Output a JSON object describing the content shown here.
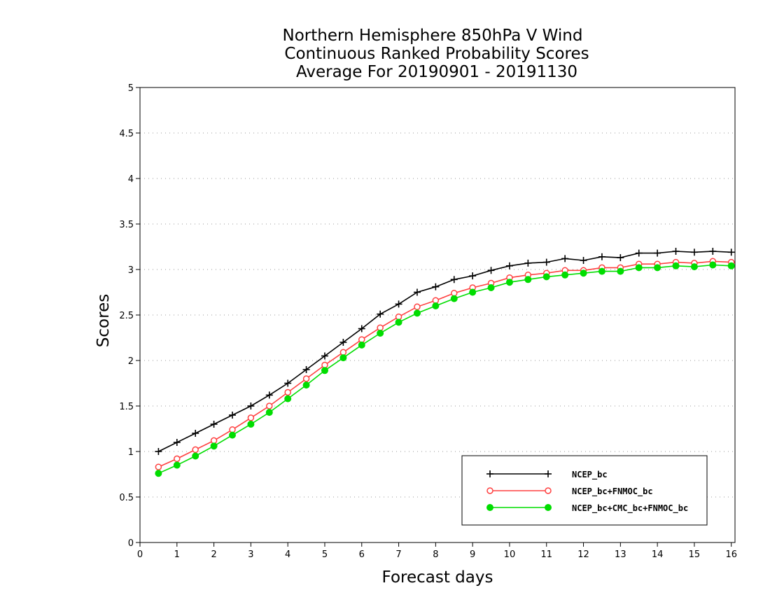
{
  "chart_data": {
    "type": "line",
    "title": [
      "Northern Hemisphere 850hPa V Wind",
      "Continuous Ranked Probability Scores",
      "Average For 20190901 - 20191130"
    ],
    "xlabel": "Forecast days",
    "ylabel": "Scores",
    "xlim": [
      0,
      16.1
    ],
    "ylim": [
      0,
      5
    ],
    "x_ticks": [
      "0",
      "1",
      "2",
      "3",
      "4",
      "5",
      "6",
      "7",
      "8",
      "9",
      "10",
      "11",
      "12",
      "13",
      "14",
      "15",
      "16"
    ],
    "y_ticks": [
      "0",
      "0.5",
      "1",
      "1.5",
      "2",
      "2.5",
      "3",
      "3.5",
      "4",
      "4.5",
      "5"
    ],
    "grid": "horizontal dotted",
    "legend_position": "bottom-right",
    "x": [
      0.5,
      1,
      1.5,
      2,
      2.5,
      3,
      3.5,
      4,
      4.5,
      5,
      5.5,
      6,
      6.5,
      7,
      7.5,
      8,
      8.5,
      9,
      9.5,
      10,
      10.5,
      11,
      11.5,
      12,
      12.5,
      13,
      13.5,
      14,
      14.5,
      15,
      15.5,
      16
    ],
    "series": [
      {
        "name": "NCEP_bc",
        "color": "#000000",
        "marker": "plus",
        "values": [
          1.0,
          1.1,
          1.2,
          1.3,
          1.4,
          1.5,
          1.62,
          1.75,
          1.9,
          2.05,
          2.2,
          2.35,
          2.51,
          2.62,
          2.75,
          2.81,
          2.89,
          2.93,
          2.99,
          3.04,
          3.07,
          3.08,
          3.12,
          3.1,
          3.14,
          3.13,
          3.18,
          3.18,
          3.2,
          3.19,
          3.2,
          3.19
        ]
      },
      {
        "name": "NCEP_bc+FNMOC_bc",
        "color": "#ff4040",
        "marker": "open-circle",
        "values": [
          0.83,
          0.92,
          1.02,
          1.12,
          1.24,
          1.37,
          1.5,
          1.65,
          1.8,
          1.95,
          2.09,
          2.23,
          2.36,
          2.48,
          2.59,
          2.66,
          2.74,
          2.8,
          2.85,
          2.91,
          2.94,
          2.96,
          2.99,
          2.99,
          3.02,
          3.02,
          3.06,
          3.06,
          3.08,
          3.07,
          3.09,
          3.08
        ]
      },
      {
        "name": "NCEP_bc+CMC_bc+FNMOC_bc",
        "color": "#00dd00",
        "marker": "filled-circle",
        "values": [
          0.76,
          0.85,
          0.95,
          1.06,
          1.18,
          1.3,
          1.43,
          1.58,
          1.73,
          1.89,
          2.03,
          2.17,
          2.3,
          2.42,
          2.52,
          2.6,
          2.68,
          2.75,
          2.8,
          2.86,
          2.89,
          2.92,
          2.94,
          2.96,
          2.98,
          2.98,
          3.02,
          3.02,
          3.04,
          3.03,
          3.05,
          3.04
        ]
      }
    ]
  }
}
